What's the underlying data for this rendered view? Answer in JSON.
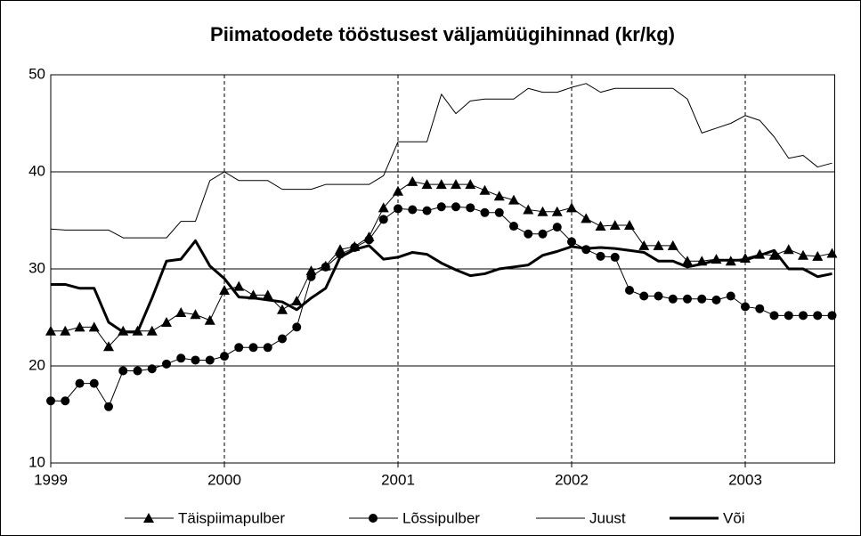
{
  "chart_data": {
    "type": "line",
    "title": "Piimatoodete tööstusest väljamüügihinnad (kr/kg)",
    "categories": [
      "1999",
      null,
      null,
      null,
      null,
      null,
      null,
      null,
      null,
      null,
      null,
      null,
      "2000",
      null,
      null,
      null,
      null,
      null,
      null,
      null,
      null,
      null,
      null,
      null,
      "2001",
      null,
      null,
      null,
      null,
      null,
      null,
      null,
      null,
      null,
      null,
      null,
      "2002",
      null,
      null,
      null,
      null,
      null,
      null,
      null,
      null,
      null,
      null,
      null,
      "2003",
      null,
      null,
      null,
      null,
      null,
      null
    ],
    "ylim": [
      10,
      50
    ],
    "yticks": [
      10,
      20,
      30,
      40,
      50
    ],
    "grid": true,
    "legend": "bottom",
    "series": [
      {
        "name": "Täispiimapulber",
        "color": "#000000",
        "marker": "triangle",
        "width": 1,
        "values": [
          23.6,
          23.6,
          24.0,
          24.0,
          22.0,
          23.6,
          23.6,
          23.6,
          24.5,
          25.5,
          25.3,
          24.7,
          27.8,
          28.2,
          27.3,
          27.3,
          25.8,
          26.7,
          29.8,
          30.3,
          32.0,
          32.3,
          33.3,
          36.3,
          38.0,
          39.0,
          38.7,
          38.7,
          38.7,
          38.7,
          38.1,
          37.5,
          37.1,
          36.1,
          35.9,
          35.9,
          36.3,
          35.2,
          34.4,
          34.5,
          34.5,
          32.4,
          32.4,
          32.4,
          30.8,
          30.8,
          31.0,
          30.8,
          31.1,
          31.5,
          31.4,
          32.0,
          31.4,
          31.3,
          31.6
        ]
      },
      {
        "name": "Lõssipulber",
        "color": "#000000",
        "marker": "circle",
        "width": 1,
        "values": [
          16.4,
          16.4,
          18.2,
          18.2,
          15.8,
          19.5,
          19.5,
          19.7,
          20.2,
          20.8,
          20.6,
          20.6,
          21.0,
          21.9,
          21.9,
          21.9,
          22.8,
          24.0,
          29.2,
          30.2,
          31.5,
          32.2,
          33.0,
          35.1,
          36.2,
          36.1,
          36.0,
          36.4,
          36.4,
          36.3,
          35.8,
          35.8,
          34.4,
          33.6,
          33.6,
          34.3,
          32.8,
          32.0,
          31.3,
          31.2,
          27.8,
          27.2,
          27.2,
          26.9,
          26.9,
          26.9,
          26.8,
          27.2,
          26.1,
          25.9,
          25.2,
          25.2,
          25.2,
          25.2,
          25.2
        ]
      },
      {
        "name": "Juust",
        "color": "#000000",
        "marker": "none",
        "width": 1,
        "values": [
          34.1,
          34.0,
          34.0,
          34.0,
          34.0,
          33.2,
          33.2,
          33.2,
          33.2,
          34.9,
          34.9,
          39.1,
          40.0,
          39.1,
          39.1,
          39.1,
          38.2,
          38.2,
          38.2,
          38.7,
          38.7,
          38.7,
          38.7,
          39.6,
          43.1,
          43.1,
          43.1,
          48.0,
          46.0,
          47.3,
          47.5,
          47.5,
          47.5,
          48.6,
          48.2,
          48.2,
          48.7,
          49.1,
          48.2,
          48.6,
          48.6,
          48.6,
          48.6,
          48.6,
          47.5,
          44.0,
          44.5,
          45.0,
          45.8,
          45.3,
          43.6,
          41.4,
          41.7,
          40.5,
          40.9
        ]
      },
      {
        "name": "Või",
        "color": "#000000",
        "marker": "none",
        "width": 3,
        "values": [
          28.4,
          28.4,
          28.0,
          28.0,
          24.5,
          23.5,
          23.5,
          27.0,
          30.8,
          31.0,
          32.9,
          30.3,
          29.0,
          27.1,
          27.0,
          26.8,
          26.6,
          25.8,
          27.0,
          28.0,
          31.2,
          32.0,
          32.4,
          31.0,
          31.2,
          31.7,
          31.5,
          30.6,
          29.9,
          29.3,
          29.5,
          30.0,
          30.2,
          30.4,
          31.4,
          31.8,
          32.3,
          32.1,
          32.2,
          32.1,
          31.9,
          31.7,
          30.8,
          30.8,
          30.2,
          30.5,
          30.9,
          30.9,
          30.9,
          31.4,
          31.9,
          30.0,
          30.0,
          29.2,
          29.5
        ]
      }
    ]
  }
}
